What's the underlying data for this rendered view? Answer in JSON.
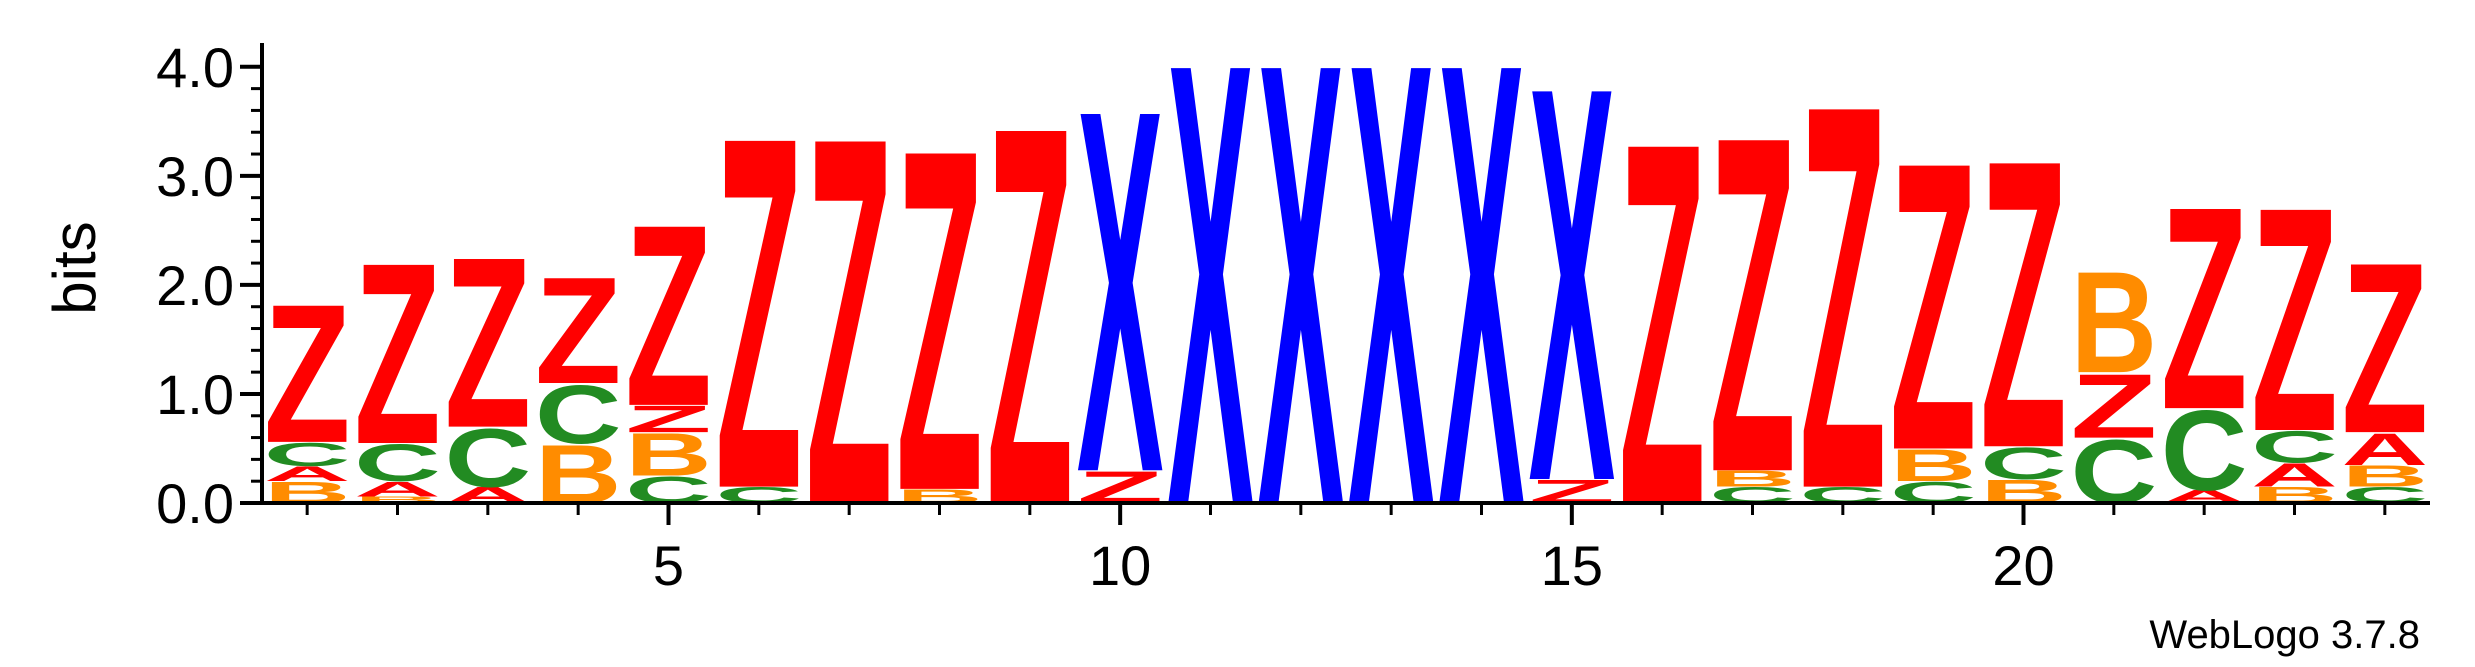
{
  "chart_data": {
    "type": "sequence-logo",
    "ylabel": "bits",
    "ylim": [
      0,
      4.2
    ],
    "y_ticks": [
      "0.0",
      "1.0",
      "2.0",
      "3.0",
      "4.0"
    ],
    "y_tick_values": [
      0,
      1,
      2,
      3,
      4
    ],
    "x_ticks": [
      "5",
      "10",
      "15",
      "20"
    ],
    "x_tick_positions": [
      5,
      10,
      15,
      20
    ],
    "positions": 24,
    "colors": {
      "A": "#ff0000",
      "B": "#ff8c00",
      "C": "#228b22",
      "X": "#0000ff",
      "Z": "#ff0000"
    },
    "credit": "WebLogo 3.7.8",
    "columns": [
      {
        "pos": 1,
        "stack": [
          [
            "B",
            0.2
          ],
          [
            "A",
            0.14
          ],
          [
            "C",
            0.22
          ],
          [
            "Z",
            1.3
          ]
        ]
      },
      {
        "pos": 2,
        "stack": [
          [
            "B",
            0.06
          ],
          [
            "A",
            0.14
          ],
          [
            "C",
            0.35
          ],
          [
            "Z",
            1.7
          ]
        ]
      },
      {
        "pos": 3,
        "stack": [
          [
            "A",
            0.15
          ],
          [
            "C",
            0.55
          ],
          [
            "Z",
            1.6
          ]
        ]
      },
      {
        "pos": 4,
        "stack": [
          [
            "B",
            0.55
          ],
          [
            "C",
            0.55
          ],
          [
            "Z",
            1.0
          ]
        ]
      },
      {
        "pos": 5,
        "stack": [
          [
            "C",
            0.25
          ],
          [
            "B",
            0.4
          ],
          [
            "Z",
            0.25
          ],
          [
            "Z",
            1.7
          ]
        ]
      },
      {
        "pos": 6,
        "stack": [
          [
            "C",
            0.15
          ],
          [
            "Z",
            3.3
          ]
        ]
      },
      {
        "pos": 7,
        "stack": [
          [
            "Z",
            3.45
          ]
        ]
      },
      {
        "pos": 8,
        "stack": [
          [
            "B",
            0.13
          ],
          [
            "Z",
            3.2
          ]
        ]
      },
      {
        "pos": 9,
        "stack": [
          [
            "Z",
            3.55
          ]
        ]
      },
      {
        "pos": 10,
        "stack": [
          [
            "Z",
            0.3
          ],
          [
            "X",
            3.4
          ]
        ]
      },
      {
        "pos": 11,
        "stack": [
          [
            "X",
            4.15
          ]
        ]
      },
      {
        "pos": 12,
        "stack": [
          [
            "X",
            4.15
          ]
        ]
      },
      {
        "pos": 13,
        "stack": [
          [
            "X",
            4.15
          ]
        ]
      },
      {
        "pos": 14,
        "stack": [
          [
            "X",
            4.15
          ]
        ]
      },
      {
        "pos": 15,
        "stack": [
          [
            "Z",
            0.22
          ],
          [
            "X",
            3.7
          ]
        ]
      },
      {
        "pos": 16,
        "stack": [
          [
            "Z",
            3.4
          ]
        ]
      },
      {
        "pos": 17,
        "stack": [
          [
            "C",
            0.15
          ],
          [
            "B",
            0.15
          ],
          [
            "Z",
            3.15
          ]
        ]
      },
      {
        "pos": 18,
        "stack": [
          [
            "C",
            0.15
          ],
          [
            "Z",
            3.6
          ]
        ]
      },
      {
        "pos": 19,
        "stack": [
          [
            "C",
            0.2
          ],
          [
            "B",
            0.3
          ],
          [
            "Z",
            2.7
          ]
        ]
      },
      {
        "pos": 20,
        "stack": [
          [
            "B",
            0.22
          ],
          [
            "C",
            0.3
          ],
          [
            "Z",
            2.7
          ]
        ]
      },
      {
        "pos": 21,
        "stack": [
          [
            "C",
            0.6
          ],
          [
            "Z",
            0.6
          ],
          [
            "B",
            0.95
          ]
        ]
      },
      {
        "pos": 22,
        "stack": [
          [
            "A",
            0.12
          ],
          [
            "C",
            0.75
          ],
          [
            "Z",
            1.9
          ]
        ]
      },
      {
        "pos": 23,
        "stack": [
          [
            "B",
            0.15
          ],
          [
            "A",
            0.22
          ],
          [
            "C",
            0.3
          ],
          [
            "Z",
            2.1
          ]
        ]
      },
      {
        "pos": 24,
        "stack": [
          [
            "C",
            0.15
          ],
          [
            "B",
            0.2
          ],
          [
            "A",
            0.3
          ],
          [
            "Z",
            1.6
          ]
        ]
      }
    ]
  }
}
